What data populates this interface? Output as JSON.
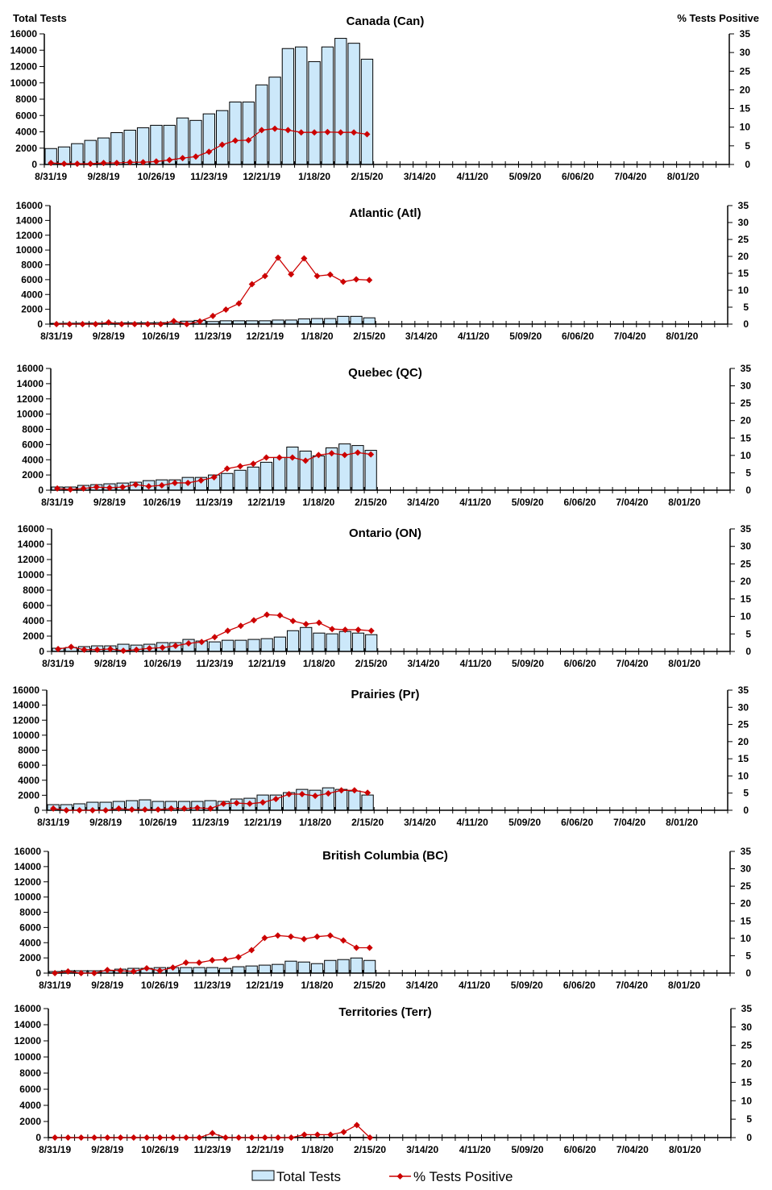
{
  "chart_data": {
    "type": "bar+line",
    "left_axis_title": "Total Tests",
    "right_axis_title": "% Tests Positive",
    "left_ylim": [
      0,
      16000
    ],
    "right_ylim": [
      0,
      35
    ],
    "left_ticks": [
      "0",
      "2000",
      "4000",
      "6000",
      "8000",
      "10000",
      "12000",
      "14000",
      "16000"
    ],
    "right_ticks": [
      "0",
      "5",
      "10",
      "15",
      "20",
      "25",
      "30",
      "35"
    ],
    "x_tick_labels": [
      "8/31/19",
      "9/28/19",
      "10/26/19",
      "11/23/19",
      "12/21/19",
      "1/18/20",
      "2/15/20",
      "3/14/20",
      "4/11/20",
      "5/09/20",
      "6/06/20",
      "7/04/20",
      "8/01/20"
    ],
    "x_note": "weekly, week ending 8/31/19 through 2/15/20 with data; axis spans to end of August 2020",
    "colors": {
      "bar_fill": "#cce8fa",
      "bar_stroke": "#000000",
      "line": "#cc0000"
    },
    "legend": {
      "bars": "Total Tests",
      "line": "% Tests Positive",
      "placement": "bottom"
    },
    "panels": [
      {
        "title": "Canada (Can)",
        "total_tests": [
          1950,
          2150,
          2550,
          2950,
          3250,
          3900,
          4200,
          4500,
          4800,
          4800,
          5700,
          5400,
          6200,
          6600,
          7650,
          7650,
          9750,
          10700,
          14200,
          14400,
          12600,
          14400,
          15450,
          14850,
          12900
        ],
        "pct_positive": [
          0.4,
          0.2,
          0.2,
          0.2,
          0.4,
          0.4,
          0.6,
          0.6,
          0.8,
          1.2,
          1.7,
          2.1,
          3.4,
          5.3,
          6.4,
          6.5,
          9.2,
          9.6,
          9.2,
          8.6,
          8.6,
          8.7,
          8.6,
          8.6,
          8.1
        ]
      },
      {
        "title": "Atlantic (Atl)",
        "total_tests": [
          100,
          120,
          130,
          140,
          150,
          160,
          170,
          180,
          200,
          250,
          400,
          500,
          350,
          450,
          450,
          450,
          450,
          550,
          550,
          700,
          750,
          750,
          1050,
          1050,
          850
        ],
        "pct_positive": [
          0,
          0,
          0,
          0,
          0.5,
          0,
          0,
          0,
          0,
          0.9,
          0,
          0.8,
          2.4,
          4.3,
          6.1,
          11.8,
          14.2,
          19.6,
          14.7,
          19.4,
          14.2,
          14.6,
          12.5,
          13.2,
          13.0
        ]
      },
      {
        "title": "Quebec (QC)",
        "total_tests": [
          420,
          420,
          630,
          730,
          840,
          940,
          1050,
          1260,
          1360,
          1360,
          1680,
          1680,
          2000,
          2200,
          2620,
          3040,
          3670,
          4300,
          5670,
          5140,
          4510,
          5560,
          6080,
          5870,
          5240
        ],
        "pct_positive": [
          0.5,
          0.2,
          0.5,
          0.9,
          0.7,
          0.9,
          1.6,
          1.1,
          1.4,
          2.1,
          2.1,
          2.8,
          3.7,
          6.2,
          6.9,
          7.6,
          9.4,
          9.4,
          9.4,
          8.5,
          10.1,
          10.6,
          10.1,
          10.8,
          10.3
        ]
      },
      {
        "title": "Ontario (ON)",
        "total_tests": [
          420,
          520,
          630,
          730,
          730,
          940,
          830,
          940,
          1150,
          1150,
          1570,
          1360,
          1250,
          1460,
          1460,
          1570,
          1670,
          1880,
          2710,
          3130,
          2400,
          2300,
          2610,
          2400,
          2190
        ],
        "pct_positive": [
          0.7,
          1.3,
          0.5,
          0.5,
          0.7,
          0.2,
          0.5,
          0.9,
          1.1,
          1.6,
          2.3,
          2.7,
          4.1,
          5.9,
          7.3,
          8.9,
          10.5,
          10.3,
          8.7,
          7.8,
          8.2,
          6.4,
          6.2,
          6.2,
          5.9
        ]
      },
      {
        "title": "Prairies (Pr)",
        "total_tests": [
          750,
          750,
          860,
          1070,
          1070,
          1180,
          1280,
          1390,
          1180,
          1180,
          1180,
          1180,
          1280,
          1180,
          1500,
          1600,
          2030,
          2030,
          2350,
          2780,
          2670,
          2990,
          2780,
          2570,
          2030
        ],
        "pct_positive": [
          0.5,
          0,
          0,
          0,
          0,
          0.5,
          0.2,
          0.2,
          0.2,
          0.5,
          0.5,
          0.7,
          0.5,
          1.9,
          2.1,
          1.9,
          2.3,
          3.3,
          4.7,
          4.7,
          4.2,
          4.9,
          5.8,
          5.8,
          5.1
        ]
      },
      {
        "title": "British Columbia (BC)",
        "total_tests": [
          210,
          310,
          310,
          310,
          310,
          520,
          630,
          630,
          730,
          730,
          730,
          730,
          730,
          630,
          840,
          940,
          1050,
          1150,
          1570,
          1460,
          1250,
          1670,
          1780,
          1990,
          1670
        ],
        "pct_positive": [
          0,
          0.5,
          0,
          0,
          0.9,
          0.7,
          0.5,
          1.4,
          0.7,
          1.6,
          3.0,
          3.0,
          3.7,
          3.9,
          4.6,
          6.6,
          10.1,
          10.8,
          10.5,
          9.8,
          10.5,
          10.8,
          9.4,
          7.3,
          7.3
        ]
      },
      {
        "title": "Territories (Terr)",
        "total_tests": [
          10,
          10,
          10,
          10,
          10,
          10,
          10,
          10,
          10,
          10,
          10,
          10,
          20,
          10,
          10,
          10,
          10,
          10,
          10,
          40,
          40,
          50,
          50,
          40,
          30
        ],
        "pct_positive": [
          0,
          0,
          0,
          0,
          0,
          0,
          0,
          0,
          0,
          0,
          0,
          0,
          1.2,
          0,
          0,
          0,
          0,
          0,
          0,
          0.8,
          0.8,
          0.8,
          1.5,
          3.4,
          0
        ]
      }
    ]
  }
}
